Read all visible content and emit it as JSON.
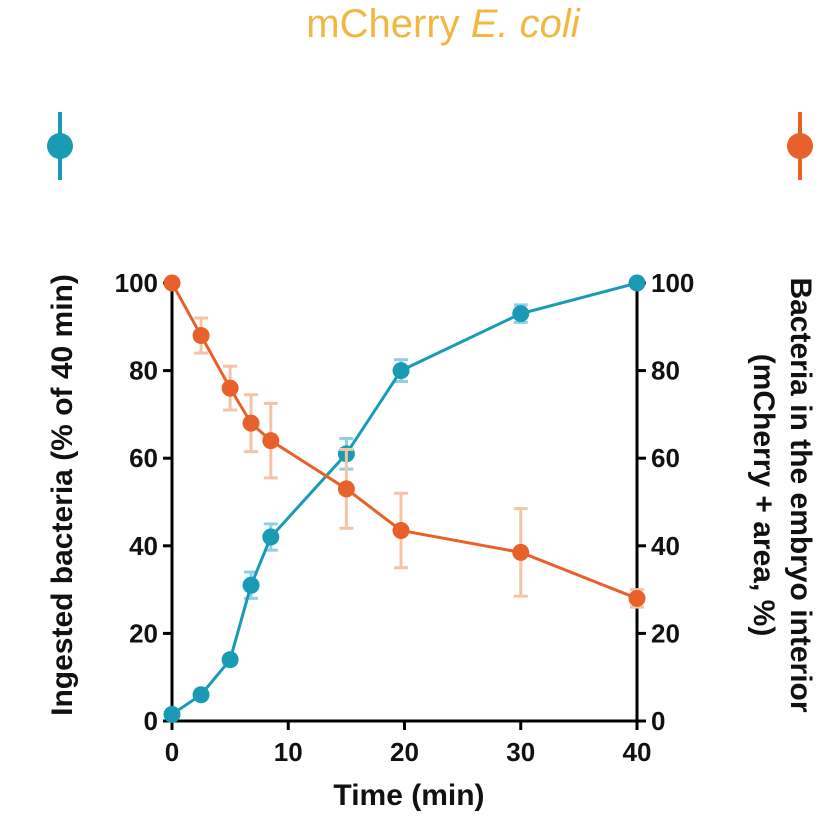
{
  "chart_data": {
    "type": "line",
    "title": "mCherry",
    "title_italic": "E. coli",
    "title_color": "#F0B840",
    "xlabel": "Time (min)",
    "ylabel_left": "Ingested bacteria  (% of 40 min)",
    "ylabel_right_line1": "Bacteria in the embryo interior",
    "ylabel_right_line2": "(mCherry + area, %)",
    "xlim": [
      0,
      40
    ],
    "ylim": [
      0,
      100
    ],
    "x_ticks": [
      "0",
      "10",
      "20",
      "30",
      "40"
    ],
    "y_ticks": [
      "0",
      "20",
      "40",
      "60",
      "80",
      "100"
    ],
    "series": [
      {
        "name": "Ingested bacteria",
        "axis": "left",
        "color": "#1A9BB5",
        "error_color": "#8FD0E8",
        "x": [
          0,
          2.5,
          5,
          6.8,
          8.5,
          15,
          19.7,
          30,
          40
        ],
        "values": [
          1.5,
          6,
          14,
          31,
          42,
          61,
          80,
          93,
          100
        ],
        "errors": [
          0,
          0,
          0,
          3,
          3,
          3.5,
          2.5,
          2,
          0
        ]
      },
      {
        "name": "Bacteria in the embryo interior",
        "axis": "right",
        "color": "#E8602A",
        "error_color": "#F5C4A8",
        "x": [
          0,
          2.5,
          5,
          6.8,
          8.5,
          15,
          19.7,
          30,
          40
        ],
        "values": [
          100,
          88,
          76,
          68,
          64,
          53,
          43.5,
          38.5,
          28
        ],
        "errors": [
          0,
          4,
          5,
          6.5,
          8.5,
          9,
          8.5,
          10,
          2
        ]
      }
    ]
  }
}
